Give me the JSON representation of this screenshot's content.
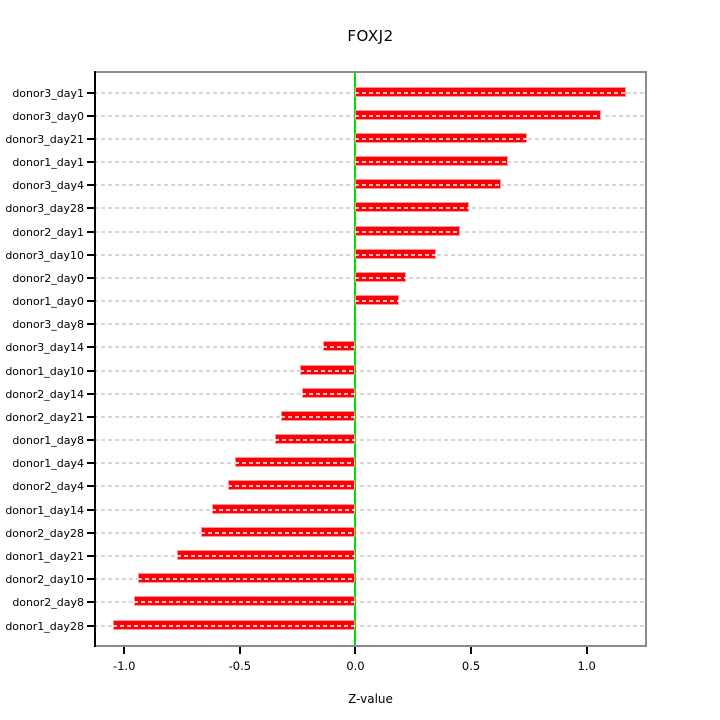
{
  "chart_data": {
    "type": "bar",
    "orientation": "horizontal",
    "title": "FOXJ2",
    "xlabel": "Z-value",
    "categories": [
      "donor3_day1",
      "donor3_day0",
      "donor3_day21",
      "donor1_day1",
      "donor3_day4",
      "donor3_day28",
      "donor2_day1",
      "donor3_day10",
      "donor2_day0",
      "donor1_day0",
      "donor3_day8",
      "donor3_day14",
      "donor1_day10",
      "donor2_day14",
      "donor2_day21",
      "donor1_day8",
      "donor1_day4",
      "donor2_day4",
      "donor1_day14",
      "donor2_day28",
      "donor1_day21",
      "donor2_day10",
      "donor2_day8",
      "donor1_day28"
    ],
    "values": [
      1.17,
      1.06,
      0.74,
      0.66,
      0.63,
      0.49,
      0.45,
      0.35,
      0.22,
      0.19,
      0.0,
      -0.14,
      -0.24,
      -0.23,
      -0.32,
      -0.35,
      -0.52,
      -0.55,
      -0.62,
      -0.67,
      -0.77,
      -0.94,
      -0.96,
      -1.05
    ],
    "x_ticks": [
      -1.0,
      -0.5,
      0.0,
      0.5,
      1.0
    ],
    "x_tick_labels": [
      "-1.0",
      "-0.5",
      "0.0",
      "0.5",
      "1.0"
    ],
    "xlim": [
      -1.131,
      1.261
    ],
    "grid": "dashed-horizontal",
    "legend": "none",
    "colors": {
      "bar_fill": "#fb0006",
      "bar_edge": "#ff9492",
      "zero_line": "#00e100",
      "grid_line": "#d6d6d6",
      "box_edge": "#8a8a8a",
      "axis": "#000000",
      "background": "#ffffff"
    }
  }
}
